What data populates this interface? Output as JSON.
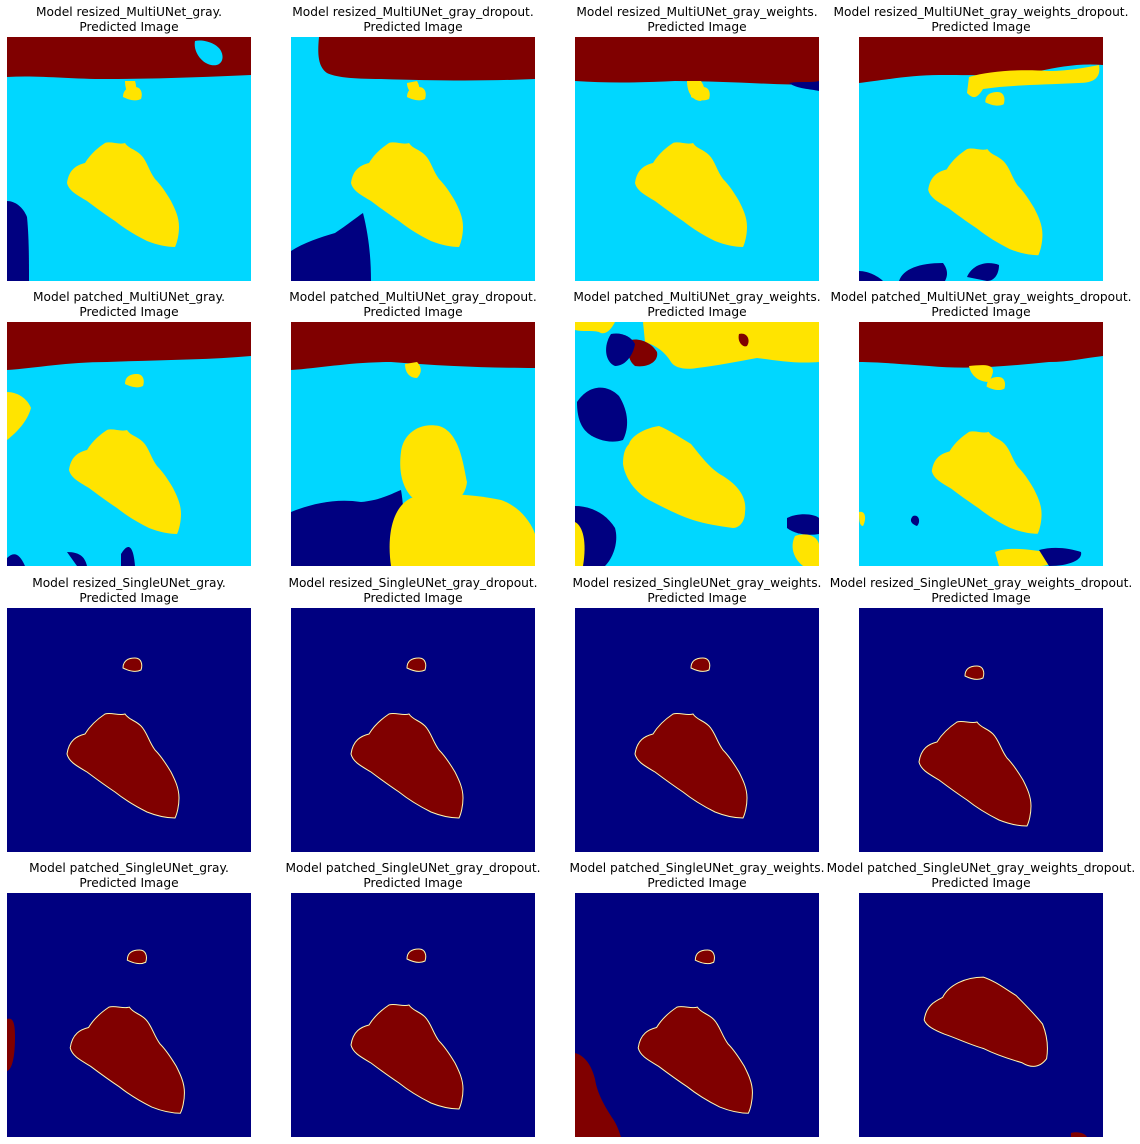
{
  "subtitle": "Predicted Image",
  "colors": {
    "dark_red": "#800000",
    "cyan": "#00d7ff",
    "yellow": "#ffe400",
    "navy": "#000080",
    "edge_yellow": "#fff6b0"
  },
  "panels": [
    {
      "title": "Model resized_MultiUNet_gray.",
      "scene": "multi_resized"
    },
    {
      "title": "Model resized_MultiUNet_gray_dropout.",
      "scene": "multi_resized_dropout"
    },
    {
      "title": "Model resized_MultiUNet_gray_weights.",
      "scene": "multi_resized_weights"
    },
    {
      "title": "Model resized_MultiUNet_gray_weights_dropout.",
      "scene": "multi_resized_weights_dropout"
    },
    {
      "title": "Model patched_MultiUNet_gray.",
      "scene": "multi_patched"
    },
    {
      "title": "Model patched_MultiUNet_gray_dropout.",
      "scene": "multi_patched_dropout"
    },
    {
      "title": "Model patched_MultiUNet_gray_weights.",
      "scene": "multi_patched_weights"
    },
    {
      "title": "Model patched_MultiUNet_gray_weights_dropout.",
      "scene": "multi_patched_weights_dropout"
    },
    {
      "title": "Model resized_SingleUNet_gray.",
      "scene": "single_a"
    },
    {
      "title": "Model resized_SingleUNet_gray_dropout.",
      "scene": "single_a"
    },
    {
      "title": "Model resized_SingleUNet_gray_weights.",
      "scene": "single_a"
    },
    {
      "title": "Model resized_SingleUNet_gray_weights_dropout.",
      "scene": "single_b"
    },
    {
      "title": "Model patched_SingleUNet_gray.",
      "scene": "single_c"
    },
    {
      "title": "Model patched_SingleUNet_gray_dropout.",
      "scene": "single_d"
    },
    {
      "title": "Model patched_SingleUNet_gray_weights.",
      "scene": "single_e"
    },
    {
      "title": "Model patched_SingleUNet_gray_weights_dropout.",
      "scene": "single_f"
    }
  ]
}
